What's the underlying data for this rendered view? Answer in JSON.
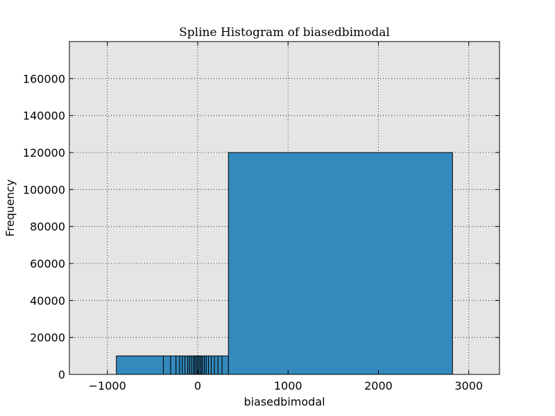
{
  "chart_data": {
    "type": "bar",
    "title": "Spline Histogram of biasedbimodal",
    "xlabel": "biasedbimodal",
    "ylabel": "Frequency",
    "xlim": [
      -1420,
      3340
    ],
    "ylim": [
      0,
      180000
    ],
    "x_ticks": [
      -1000,
      0,
      1000,
      2000,
      3000
    ],
    "y_ticks": [
      0,
      20000,
      40000,
      60000,
      80000,
      100000,
      120000,
      140000,
      160000
    ],
    "grid": true,
    "bar_color": "#348abd",
    "background_color": "#e5e5e5",
    "bins": [
      {
        "left": -900,
        "right": -380,
        "value": 10000
      },
      {
        "left": -380,
        "right": -300,
        "value": 10000
      },
      {
        "left": -300,
        "right": -240,
        "value": 10000
      },
      {
        "left": -240,
        "right": -200,
        "value": 10000
      },
      {
        "left": -200,
        "right": -170,
        "value": 10000
      },
      {
        "left": -170,
        "right": -140,
        "value": 10000
      },
      {
        "left": -140,
        "right": -110,
        "value": 10000
      },
      {
        "left": -110,
        "right": -90,
        "value": 10000
      },
      {
        "left": -90,
        "right": -70,
        "value": 10000
      },
      {
        "left": -70,
        "right": -50,
        "value": 10000
      },
      {
        "left": -50,
        "right": -35,
        "value": 10000
      },
      {
        "left": -35,
        "right": -20,
        "value": 10000
      },
      {
        "left": -20,
        "right": -5,
        "value": 10000
      },
      {
        "left": -5,
        "right": 10,
        "value": 10000
      },
      {
        "left": 10,
        "right": 25,
        "value": 10000
      },
      {
        "left": 25,
        "right": 40,
        "value": 10000
      },
      {
        "left": 40,
        "right": 55,
        "value": 10000
      },
      {
        "left": 55,
        "right": 75,
        "value": 10000
      },
      {
        "left": 75,
        "right": 95,
        "value": 10000
      },
      {
        "left": 95,
        "right": 120,
        "value": 10000
      },
      {
        "left": 120,
        "right": 150,
        "value": 10000
      },
      {
        "left": 150,
        "right": 185,
        "value": 10000
      },
      {
        "left": 185,
        "right": 225,
        "value": 10000
      },
      {
        "left": 225,
        "right": 270,
        "value": 10000
      },
      {
        "left": 270,
        "right": 340,
        "value": 10000
      },
      {
        "left": 340,
        "right": 2820,
        "value": 120000
      }
    ]
  }
}
